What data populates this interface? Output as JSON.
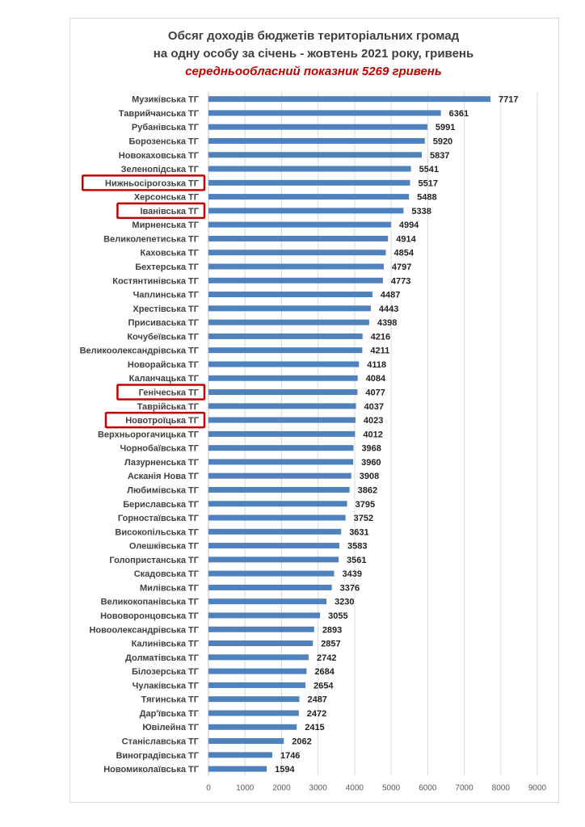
{
  "chart_data": {
    "type": "bar",
    "orientation": "horizontal",
    "title": "Обсяг доходів бюджетів територіальних громад",
    "subtitle": "на одну особу за січень - жовтень 2021 року, гривень",
    "annotation": "середньообласний показник 5269 гривень",
    "xlim": [
      0,
      9000
    ],
    "xticks": [
      "0",
      "1000",
      "2000",
      "3000",
      "4000",
      "5000",
      "6000",
      "7000",
      "8000",
      "9000"
    ],
    "categories": [
      "Музиківська ТГ",
      "Таврийчанська ТГ",
      "Рубанівська ТГ",
      "Борозенська ТГ",
      "Новокаховська ТГ",
      "Зеленопідська ТГ",
      "Нижньосірогозька ТГ",
      "Херсонська ТГ",
      "Іванівська ТГ",
      "Мирненська ТГ",
      "Великолепетиська ТГ",
      "Каховська ТГ",
      "Бехтерська ТГ",
      "Костянтинівська ТГ",
      "Чаплинська ТГ",
      "Хрестівська ТГ",
      "Присиваська ТГ",
      "Кочубеївська ТГ",
      "Великоолександрівська ТГ",
      "Новорайська ТГ",
      "Каланчацька ТГ",
      "Генічеська ТГ",
      "Таврійська ТГ",
      "Новотроїцька ТГ",
      "Верхньорогачицька ТГ",
      "Чорнобаївська ТГ",
      "Лазурненська ТГ",
      "Асканія Нова ТГ",
      "Любимівська ТГ",
      "Бериславська ТГ",
      "Горностаївська ТГ",
      "Високопільська ТГ",
      "Олешківська ТГ",
      "Голопристанська ТГ",
      "Скадовська ТГ",
      "Милівська ТГ",
      "Великокопанівська ТГ",
      "Нововоронцовська ТГ",
      "Новоолександрівська ТГ",
      "Калинівська ТГ",
      "Долматівська ТГ",
      "Білозерська ТГ",
      "Чулаківська ТГ",
      "Тягинська ТГ",
      "Дар'ївська ТГ",
      "Ювілейна ТГ",
      "Станіславська ТГ",
      "Виноградівська ТГ",
      "Новомиколаївська ТГ"
    ],
    "values": [
      7717,
      6361,
      5991,
      5920,
      5837,
      5541,
      5517,
      5488,
      5338,
      4994,
      4914,
      4854,
      4797,
      4773,
      4487,
      4443,
      4398,
      4216,
      4211,
      4118,
      4084,
      4077,
      4037,
      4023,
      4012,
      3968,
      3960,
      3908,
      3862,
      3795,
      3752,
      3631,
      3583,
      3561,
      3439,
      3376,
      3230,
      3055,
      2893,
      2857,
      2742,
      2684,
      2654,
      2487,
      2472,
      2415,
      2062,
      1746,
      1594
    ],
    "highlighted": [
      "Нижньосірогозька ТГ",
      "Іванівська ТГ",
      "Генічеська ТГ",
      "Новотроїцька ТГ"
    ],
    "grid": true,
    "legend": "none"
  },
  "colors": {
    "bar": "#4f81bd",
    "highlight": "#c00000",
    "annotation": "#c00000"
  }
}
